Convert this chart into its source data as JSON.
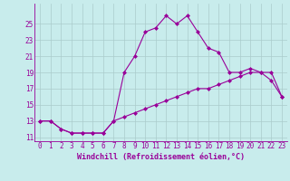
{
  "xlabel": "Windchill (Refroidissement éolien,°C)",
  "bg_color": "#c8ecec",
  "line_color": "#990099",
  "grid_color": "#aacccc",
  "hours": [
    0,
    1,
    2,
    3,
    4,
    5,
    6,
    7,
    8,
    9,
    10,
    11,
    12,
    13,
    14,
    15,
    16,
    17,
    18,
    19,
    20,
    21,
    22,
    23
  ],
  "line1": [
    13.0,
    13.0,
    12.0,
    11.5,
    11.5,
    11.5,
    11.5,
    13.0,
    19.0,
    21.0,
    24.0,
    24.5,
    26.0,
    25.0,
    26.0,
    24.0,
    22.0,
    21.5,
    19.0,
    19.0,
    19.5,
    19.0,
    18.0,
    16.0
  ],
  "line2": [
    13.0,
    13.0,
    12.0,
    11.5,
    11.5,
    11.5,
    11.5,
    13.0,
    13.5,
    14.0,
    14.5,
    15.0,
    15.5,
    16.0,
    16.5,
    17.0,
    17.0,
    17.5,
    18.0,
    18.5,
    19.0,
    19.0,
    19.0,
    16.0
  ],
  "ylim": [
    10.5,
    27.5
  ],
  "xlim": [
    -0.5,
    23.5
  ],
  "yticks": [
    11,
    13,
    15,
    17,
    19,
    21,
    23,
    25
  ],
  "xtick_labels": [
    "0",
    "1",
    "2",
    "3",
    "4",
    "5",
    "6",
    "7",
    "8",
    "9",
    "10",
    "11",
    "12",
    "13",
    "14",
    "15",
    "16",
    "17",
    "18",
    "19",
    "20",
    "21",
    "22",
    "23"
  ],
  "marker": "D",
  "markersize": 2.0,
  "linewidth": 0.8,
  "xlabel_fontsize": 6.0,
  "tick_fontsize": 5.5
}
